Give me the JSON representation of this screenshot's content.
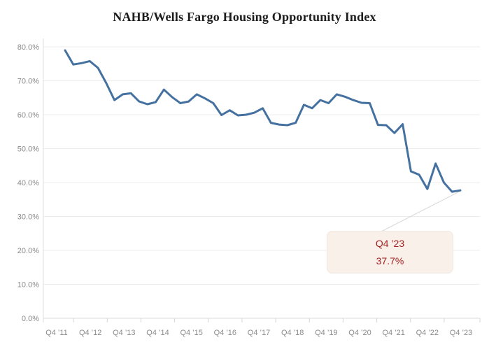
{
  "title": "NAHB/Wells Fargo Housing Opportunity Index",
  "annotation": {
    "label": "Q4 ’23",
    "value": "37.7%"
  },
  "colors": {
    "line": "#44719f",
    "grid": "#ececec",
    "axis": "#dedede",
    "tick": "#d6d6d6",
    "tick_text": "#8b8b8b",
    "title_text": "#1c1c1c",
    "annotation_text": "#a42222",
    "annotation_bg": "#f9f0ea",
    "leader": "#d8d8d8"
  },
  "chart_data": {
    "type": "line",
    "title": "NAHB/Wells Fargo Housing Opportunity Index",
    "ylabel": "",
    "xlabel": "",
    "ylim": [
      0,
      80
    ],
    "grid": "horizontal",
    "legend": "none",
    "y_tick_labels": [
      "0.0%",
      "10.0%",
      "20.0%",
      "30.0%",
      "40.0%",
      "50.0%",
      "60.0%",
      "70.0%",
      "80.0%"
    ],
    "y_tick_values": [
      0,
      10,
      20,
      30,
      40,
      50,
      60,
      70,
      80
    ],
    "x_tick_labels": [
      "Q4 ’11",
      "Q4 ’12",
      "Q4 ’13",
      "Q4 ’14",
      "Q4 ’15",
      "Q4 ’16",
      "Q4 ’17",
      "Q4 ’18",
      "Q4 ’19",
      "Q4 ’20",
      "Q4 ’21",
      "Q4 ’22",
      "Q4 ’23"
    ],
    "quarters": [
      "Q4 ’11",
      "Q1 ’12",
      "Q2 ’12",
      "Q3 ’12",
      "Q4 ’12",
      "Q1 ’13",
      "Q2 ’13",
      "Q3 ’13",
      "Q4 ’13",
      "Q1 ’14",
      "Q2 ’14",
      "Q3 ’14",
      "Q4 ’14",
      "Q1 ’15",
      "Q2 ’15",
      "Q3 ’15",
      "Q4 ’15",
      "Q1 ’16",
      "Q2 ’16",
      "Q3 ’16",
      "Q4 ’16",
      "Q1 ’17",
      "Q2 ’17",
      "Q3 ’17",
      "Q4 ’17",
      "Q1 ’18",
      "Q2 ’18",
      "Q3 ’18",
      "Q4 ’18",
      "Q1 ’19",
      "Q2 ’19",
      "Q3 ’19",
      "Q4 ’19",
      "Q1 ’20",
      "Q2 ’20",
      "Q3 ’20",
      "Q4 ’20",
      "Q1 ’21",
      "Q2 ’21",
      "Q3 ’21",
      "Q4 ’21",
      "Q1 ’22",
      "Q2 ’22",
      "Q3 ’22",
      "Q4 ’22",
      "Q1 ’23",
      "Q2 ’23",
      "Q3 ’23",
      "Q4 ’23"
    ],
    "values": [
      79.0,
      74.8,
      75.2,
      75.8,
      73.8,
      69.3,
      64.3,
      66.0,
      66.3,
      63.9,
      63.1,
      63.7,
      67.4,
      65.2,
      63.4,
      63.9,
      66.0,
      64.8,
      63.4,
      59.9,
      61.3,
      59.8,
      60.0,
      60.6,
      61.9,
      57.6,
      57.1,
      56.9,
      57.6,
      62.9,
      61.9,
      64.3,
      63.4,
      66.0,
      65.3,
      64.3,
      63.5,
      63.4,
      57.0,
      56.9,
      54.6,
      57.2,
      43.3,
      42.3,
      38.1,
      45.6,
      40.0,
      37.3,
      37.7
    ],
    "annotation": {
      "quarter": "Q4 ’23",
      "value": 37.7
    }
  }
}
